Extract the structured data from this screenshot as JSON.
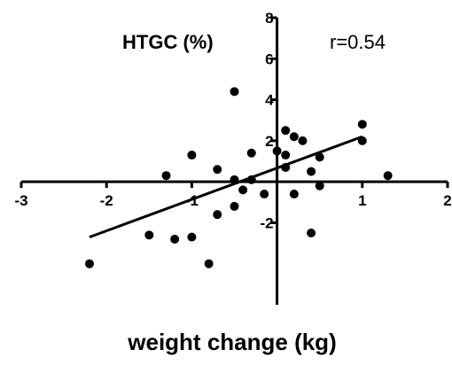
{
  "chart_data": {
    "type": "scatter",
    "title": "HTGC (%)",
    "annotation": "r=0.54",
    "xlabel": "weight change (kg)",
    "ylabel": "",
    "xlim": [
      -3,
      2
    ],
    "ylim": [
      -6,
      8
    ],
    "x_ticks": [
      -3,
      -2,
      -1,
      1,
      2
    ],
    "y_ticks": [
      8,
      6,
      4,
      2,
      -2
    ],
    "points": [
      {
        "x": -2.2,
        "y": -4.0
      },
      {
        "x": -1.5,
        "y": -2.6
      },
      {
        "x": -1.3,
        "y": 0.3
      },
      {
        "x": -1.2,
        "y": -2.8
      },
      {
        "x": -1.0,
        "y": -2.7
      },
      {
        "x": -1.0,
        "y": 1.3
      },
      {
        "x": -0.8,
        "y": -4.0
      },
      {
        "x": -0.7,
        "y": -1.6
      },
      {
        "x": -0.7,
        "y": 0.6
      },
      {
        "x": -0.5,
        "y": -1.2
      },
      {
        "x": -0.5,
        "y": 0.1
      },
      {
        "x": -0.5,
        "y": 4.4
      },
      {
        "x": -0.4,
        "y": -0.4
      },
      {
        "x": -0.3,
        "y": 0.1
      },
      {
        "x": -0.3,
        "y": 1.4
      },
      {
        "x": -0.15,
        "y": -0.6
      },
      {
        "x": 0.0,
        "y": 1.5
      },
      {
        "x": 0.1,
        "y": 0.7
      },
      {
        "x": 0.1,
        "y": 2.5
      },
      {
        "x": 0.1,
        "y": 1.3
      },
      {
        "x": 0.2,
        "y": -0.6
      },
      {
        "x": 0.2,
        "y": 2.2
      },
      {
        "x": 0.3,
        "y": 2.0
      },
      {
        "x": 0.4,
        "y": 0.5
      },
      {
        "x": 0.4,
        "y": -2.5
      },
      {
        "x": 0.5,
        "y": 1.2
      },
      {
        "x": 0.5,
        "y": -0.2
      },
      {
        "x": 1.0,
        "y": 2.0
      },
      {
        "x": 1.0,
        "y": 2.8
      },
      {
        "x": 1.3,
        "y": 0.3
      }
    ],
    "regression_line": {
      "x": [
        -2.2,
        1.0
      ],
      "y": [
        -2.7,
        2.2
      ]
    }
  }
}
